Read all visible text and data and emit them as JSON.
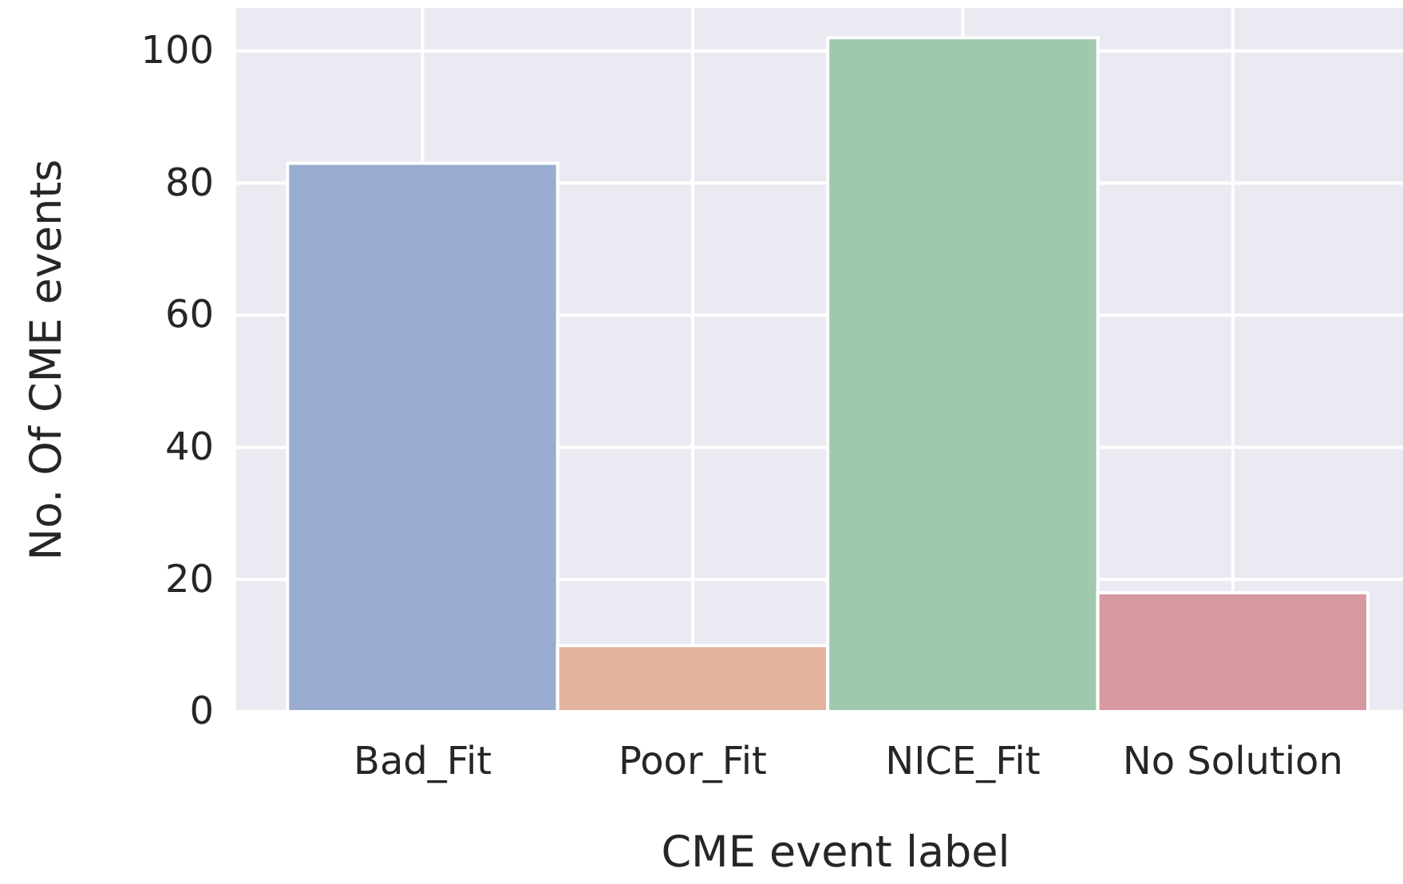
{
  "chart_data": {
    "type": "bar",
    "xlabel": "CME event label",
    "ylabel": "No. Of CME events",
    "categories": [
      "Bad_Fit",
      "Poor_Fit",
      "NICE_Fit",
      "No Solution"
    ],
    "values": [
      83,
      10,
      102,
      18
    ],
    "colors": [
      "#99acd0",
      "#e4b39d",
      "#9fc9ad",
      "#d699a0"
    ],
    "ylim": [
      0,
      106.5
    ],
    "yticks": [
      0,
      20,
      40,
      60,
      80,
      100
    ],
    "grid": true
  }
}
